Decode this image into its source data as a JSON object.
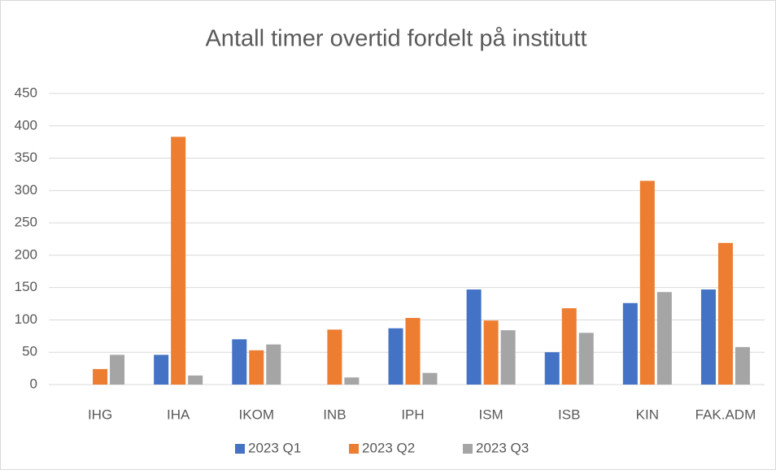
{
  "chart_data": {
    "type": "bar",
    "title": "Antall timer overtid fordelt på institutt",
    "categories": [
      "IHG",
      "IHA",
      "IKOM",
      "INB",
      "IPH",
      "ISM",
      "ISB",
      "KIN",
      "FAK.ADM"
    ],
    "series": [
      {
        "name": "2023 Q1",
        "color": "#4472c4",
        "values": [
          null,
          46,
          70,
          null,
          87,
          147,
          50,
          126,
          147
        ]
      },
      {
        "name": "2023 Q2",
        "color": "#ed7d31",
        "values": [
          24,
          383,
          53,
          85,
          103,
          99,
          118,
          315,
          219
        ]
      },
      {
        "name": "2023 Q3",
        "color": "#a5a5a5",
        "values": [
          46,
          14,
          62,
          11,
          18,
          84,
          80,
          143,
          58
        ]
      }
    ],
    "ylim": [
      0,
      450
    ],
    "yticks": [
      0,
      50,
      100,
      150,
      200,
      250,
      300,
      350,
      400,
      450
    ],
    "grid": true,
    "legend": "bottom"
  }
}
